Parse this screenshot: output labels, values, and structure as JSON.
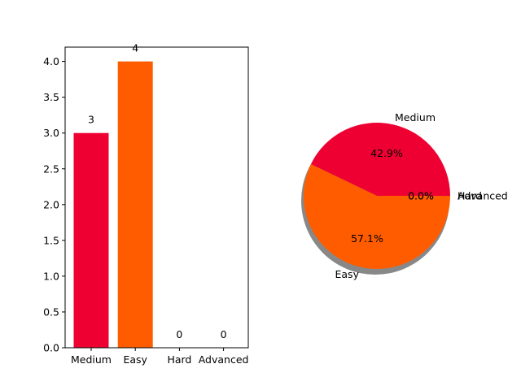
{
  "chart_data": [
    {
      "type": "bar",
      "categories": [
        "Medium",
        "Easy",
        "Hard",
        "Advanced"
      ],
      "values": [
        3,
        4,
        0,
        0
      ],
      "data_labels": [
        "3",
        "4",
        "0",
        "0"
      ],
      "colors": [
        "#ee0033",
        "#ff5c00",
        "#ee0033",
        "#ff5c00"
      ],
      "ylim": [
        0,
        4.2
      ],
      "yticks": [
        "0.0",
        "0.5",
        "1.0",
        "1.5",
        "2.0",
        "2.5",
        "3.0",
        "3.5",
        "4.0"
      ],
      "title": "",
      "xlabel": "",
      "ylabel": "",
      "grid": false
    },
    {
      "type": "pie",
      "labels": [
        "Medium",
        "Easy",
        "Hard",
        "Advanced"
      ],
      "values": [
        3,
        4,
        0,
        0
      ],
      "pct_labels": [
        "42.9%",
        "57.1%",
        "0.0%",
        "0.0%"
      ],
      "colors": [
        "#ee0033",
        "#ff5c00",
        "#ee0033",
        "#ff5c00"
      ],
      "shadow": true,
      "start_angle_deg": 0,
      "title": ""
    }
  ]
}
